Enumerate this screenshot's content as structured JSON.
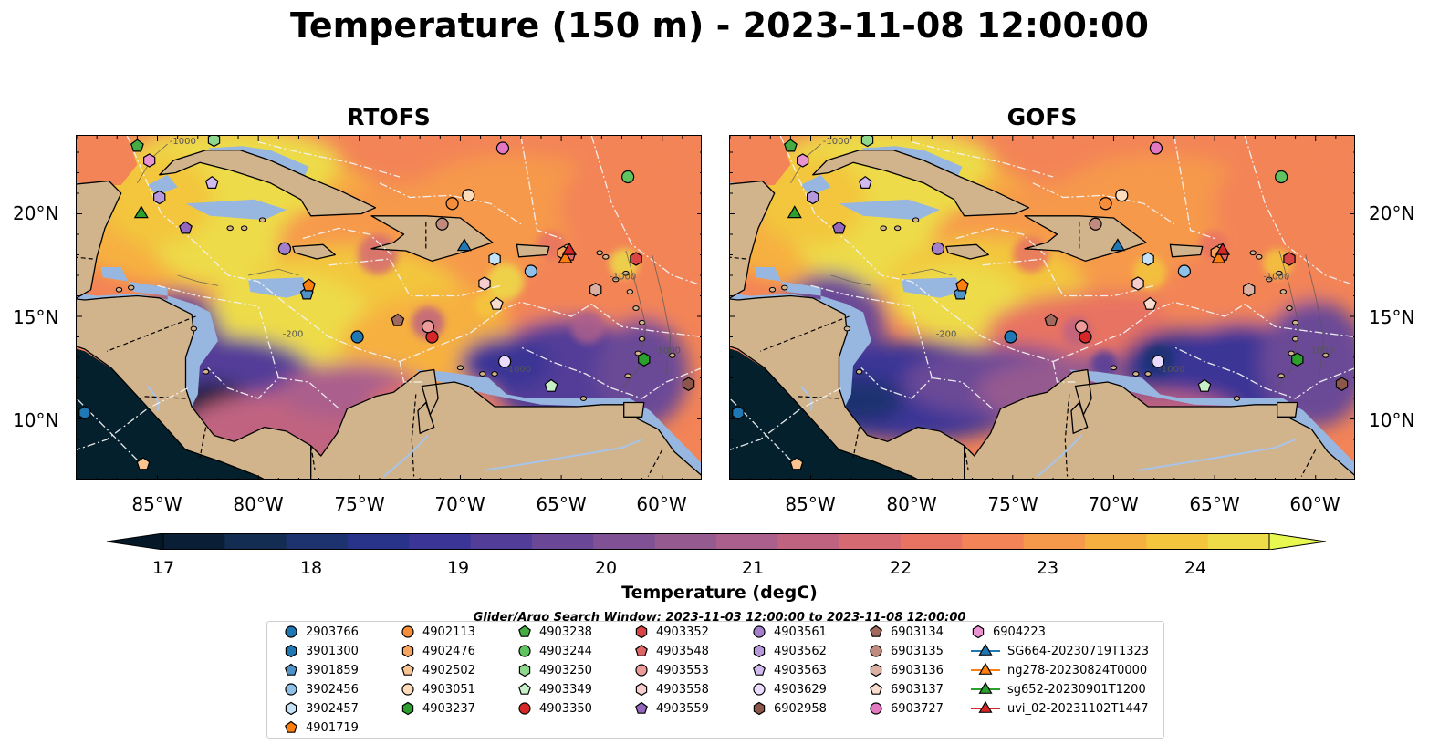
{
  "title": "Temperature (150 m) - 2023-11-08 12:00:00",
  "panels": [
    {
      "title": "RTOFS"
    },
    {
      "title": "GOFS"
    }
  ],
  "axes": {
    "lon_ticks": [
      "85°W",
      "80°W",
      "75°W",
      "70°W",
      "65°W",
      "60°W"
    ],
    "lat_ticks": [
      "20°N",
      "15°N",
      "10°N"
    ]
  },
  "contour_labels": [
    "-200",
    "-1000",
    "-1000",
    "-1000",
    "-1000"
  ],
  "colorbar": {
    "label": "Temperature (degC)",
    "ticks": [
      "17",
      "18",
      "19",
      "20",
      "21",
      "22",
      "23",
      "24"
    ],
    "colors": [
      "#0a1f35",
      "#132c52",
      "#1c3370",
      "#27348a",
      "#3a3596",
      "#523e98",
      "#6a4897",
      "#805295",
      "#955a90",
      "#aa5f8c",
      "#c06381",
      "#d56a73",
      "#e87362",
      "#f38457",
      "#f6994b",
      "#f6b040",
      "#f3c63e",
      "#eddb48"
    ],
    "under_color": "#041828",
    "over_color": "#e8f850"
  },
  "search_window": "Glider/Argo Search Window: 2023-11-03 12:00:00 to 2023-11-08 12:00:00",
  "map_colors": {
    "land": "#d2b48c",
    "shelf": "#98b7e0",
    "deep_ocean": "#04202c",
    "river": "#a8c4e8"
  },
  "legend": [
    {
      "label": "2903766",
      "marker": "circle",
      "color": "#1f77b4"
    },
    {
      "label": "3901300",
      "marker": "hexagon",
      "color": "#1f77b4"
    },
    {
      "label": "3901859",
      "marker": "pentagon",
      "color": "#4f92c6"
    },
    {
      "label": "3902456",
      "marker": "circle",
      "color": "#8ec0e8"
    },
    {
      "label": "3902457",
      "marker": "hexagon",
      "color": "#c6e2f7"
    },
    {
      "label": "4901719",
      "marker": "pentagon",
      "color": "#ff7f0e"
    },
    {
      "label": "4902113",
      "marker": "circle",
      "color": "#f58d3b"
    },
    {
      "label": "4902476",
      "marker": "hexagon",
      "color": "#f7a45e"
    },
    {
      "label": "4902502",
      "marker": "pentagon",
      "color": "#fac490"
    },
    {
      "label": "4903051",
      "marker": "circle",
      "color": "#fddcbc"
    },
    {
      "label": "4903237",
      "marker": "hexagon",
      "color": "#2ca02c"
    },
    {
      "label": "4903238",
      "marker": "pentagon",
      "color": "#43ad43"
    },
    {
      "label": "4903244",
      "marker": "circle",
      "color": "#5fc35f"
    },
    {
      "label": "4903250",
      "marker": "hexagon",
      "color": "#8ed88e"
    },
    {
      "label": "4903349",
      "marker": "pentagon",
      "color": "#c8f0c8"
    },
    {
      "label": "4903350",
      "marker": "circle",
      "color": "#d62728"
    },
    {
      "label": "4903352",
      "marker": "hexagon",
      "color": "#d94545"
    },
    {
      "label": "4903548",
      "marker": "pentagon",
      "color": "#e06666"
    },
    {
      "label": "4903553",
      "marker": "circle",
      "color": "#ec9a9a"
    },
    {
      "label": "4903558",
      "marker": "hexagon",
      "color": "#f7cccc"
    },
    {
      "label": "4903559",
      "marker": "pentagon",
      "color": "#9467bd"
    },
    {
      "label": "4903561",
      "marker": "circle",
      "color": "#a47fcc"
    },
    {
      "label": "4903562",
      "marker": "hexagon",
      "color": "#b898dc"
    },
    {
      "label": "4903563",
      "marker": "pentagon",
      "color": "#d2baf0"
    },
    {
      "label": "4903629",
      "marker": "circle",
      "color": "#eadcff"
    },
    {
      "label": "6902958",
      "marker": "hexagon",
      "color": "#8c564b"
    },
    {
      "label": "6903134",
      "marker": "pentagon",
      "color": "#a26a5f"
    },
    {
      "label": "6903135",
      "marker": "circle",
      "color": "#c08a7e"
    },
    {
      "label": "6903136",
      "marker": "hexagon",
      "color": "#ddb0a4"
    },
    {
      "label": "6903137",
      "marker": "pentagon",
      "color": "#fadccf"
    },
    {
      "label": "6903727",
      "marker": "circle",
      "color": "#e377c2"
    },
    {
      "label": "6904223",
      "marker": "hexagon",
      "color": "#ea92d2"
    },
    {
      "label": "SG664-20230719T1323",
      "marker": "triangle-line",
      "color": "#1f77b4"
    },
    {
      "label": "ng278-20230824T0000",
      "marker": "triangle-line",
      "color": "#ff7f0e"
    },
    {
      "label": "sg652-20230901T1200",
      "marker": "triangle-line",
      "color": "#2ca02c"
    },
    {
      "label": "uvi_02-20231102T1447",
      "marker": "triangle-line",
      "color": "#d62728"
    }
  ],
  "platform_positions": [
    {
      "id": "2903766",
      "lon": -75.1,
      "lat": 14.0
    },
    {
      "id": "3901300",
      "lon": -88.6,
      "lat": 10.3
    },
    {
      "id": "3901859",
      "lon": -77.6,
      "lat": 16.1
    },
    {
      "id": "3902456",
      "lon": -66.5,
      "lat": 17.2
    },
    {
      "id": "3902457",
      "lon": -68.3,
      "lat": 17.8
    },
    {
      "id": "4901719",
      "lon": -77.5,
      "lat": 16.5
    },
    {
      "id": "4902113",
      "lon": -70.4,
      "lat": 20.5
    },
    {
      "id": "4902476",
      "lon": -64.9,
      "lat": 18.1
    },
    {
      "id": "4902502",
      "lon": -85.7,
      "lat": 7.8
    },
    {
      "id": "4903051",
      "lon": -69.6,
      "lat": 20.9
    },
    {
      "id": "4903237",
      "lon": -60.9,
      "lat": 12.9
    },
    {
      "id": "4903238",
      "lon": -86.0,
      "lat": 23.3
    },
    {
      "id": "4903244",
      "lon": -61.7,
      "lat": 21.8
    },
    {
      "id": "4903250",
      "lon": -82.2,
      "lat": 23.6
    },
    {
      "id": "4903349",
      "lon": -65.5,
      "lat": 11.6
    },
    {
      "id": "4903350",
      "lon": -71.4,
      "lat": 14.0
    },
    {
      "id": "4903352",
      "lon": -61.3,
      "lat": 17.8
    },
    {
      "id": "4903548",
      "lon": -64.6,
      "lat": 18.0
    },
    {
      "id": "4903553",
      "lon": -71.6,
      "lat": 14.5
    },
    {
      "id": "4903558",
      "lon": -68.8,
      "lat": 16.6
    },
    {
      "id": "4903559",
      "lon": -83.6,
      "lat": 19.3
    },
    {
      "id": "4903561",
      "lon": -78.7,
      "lat": 18.3
    },
    {
      "id": "4903562",
      "lon": -84.9,
      "lat": 20.8
    },
    {
      "id": "4903563",
      "lon": -82.3,
      "lat": 21.5
    },
    {
      "id": "4903629",
      "lon": -67.8,
      "lat": 12.8
    },
    {
      "id": "6902958",
      "lon": -58.7,
      "lat": 11.7
    },
    {
      "id": "6903134",
      "lon": -73.1,
      "lat": 14.8
    },
    {
      "id": "6903135",
      "lon": -70.9,
      "lat": 19.5
    },
    {
      "id": "6903136",
      "lon": -63.3,
      "lat": 16.3
    },
    {
      "id": "6903137",
      "lon": -68.2,
      "lat": 15.6
    },
    {
      "id": "6903727",
      "lon": -67.9,
      "lat": 23.2
    },
    {
      "id": "6904223",
      "lon": -85.4,
      "lat": 22.6
    },
    {
      "id": "SG664-20230719T1323",
      "lon": -69.8,
      "lat": 18.4
    },
    {
      "id": "ng278-20230824T0000",
      "lon": -64.8,
      "lat": 17.8
    },
    {
      "id": "sg652-20230901T1200",
      "lon": -85.8,
      "lat": 20.0
    },
    {
      "id": "uvi_02-20231102T1447",
      "lon": -64.6,
      "lat": 18.2
    }
  ]
}
